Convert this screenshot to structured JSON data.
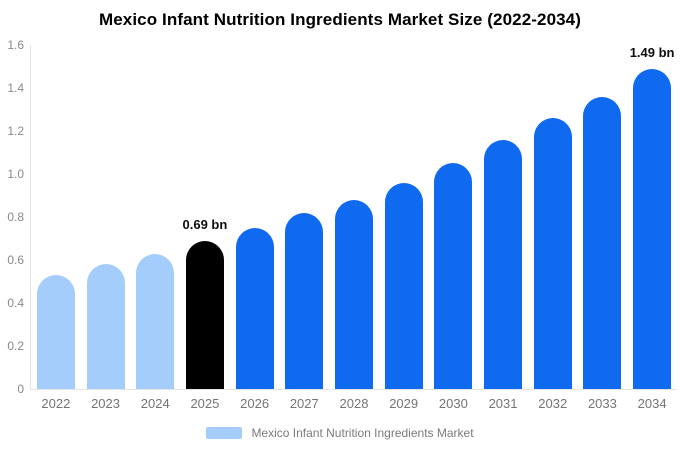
{
  "title": "Mexico Infant Nutrition Ingredients Market Size (2022-2034)",
  "legend": {
    "label": "Mexico Infant Nutrition Ingredients Market",
    "swatch_color": "#a5cdfb"
  },
  "colors": {
    "historical_bar": "#a5cdfb",
    "highlight_bar": "#000000",
    "forecast_bar": "#0f6af0",
    "axis_line": "#e4e4e4",
    "tick_text": "#8a8a8a",
    "category_text": "#757575",
    "annotation_text": "#0d0d0d"
  },
  "chart_data": {
    "type": "bar",
    "title": "Mexico Infant Nutrition Ingredients Market Size (2022-2034)",
    "categories": [
      "2022",
      "2023",
      "2024",
      "2025",
      "2026",
      "2027",
      "2028",
      "2029",
      "2030",
      "2031",
      "2032",
      "2033",
      "2034"
    ],
    "values": [
      0.53,
      0.58,
      0.63,
      0.69,
      0.75,
      0.82,
      0.88,
      0.96,
      1.05,
      1.16,
      1.26,
      1.36,
      1.49
    ],
    "unit": "bn",
    "bar_colors": [
      "#a5cdfb",
      "#a5cdfb",
      "#a5cdfb",
      "#000000",
      "#0f6af0",
      "#0f6af0",
      "#0f6af0",
      "#0f6af0",
      "#0f6af0",
      "#0f6af0",
      "#0f6af0",
      "#0f6af0",
      "#0f6af0"
    ],
    "annotations": [
      {
        "index": 3,
        "text": "0.69 bn"
      },
      {
        "index": 12,
        "text": "1.49 bn"
      }
    ],
    "xlabel": "",
    "ylabel": "",
    "ylim": [
      0,
      1.6
    ],
    "y_ticks": [
      0,
      0.2,
      0.4,
      0.6,
      0.8,
      1.0,
      1.2,
      1.4,
      1.6
    ],
    "y_tick_labels": [
      "0",
      "0.2",
      "0.4",
      "0.6",
      "0.8",
      "1.0",
      "1.2",
      "1.4",
      "1.6"
    ],
    "grid": false,
    "legend_entries": [
      "Mexico Infant Nutrition Ingredients Market"
    ],
    "legend_position": "bottom"
  }
}
